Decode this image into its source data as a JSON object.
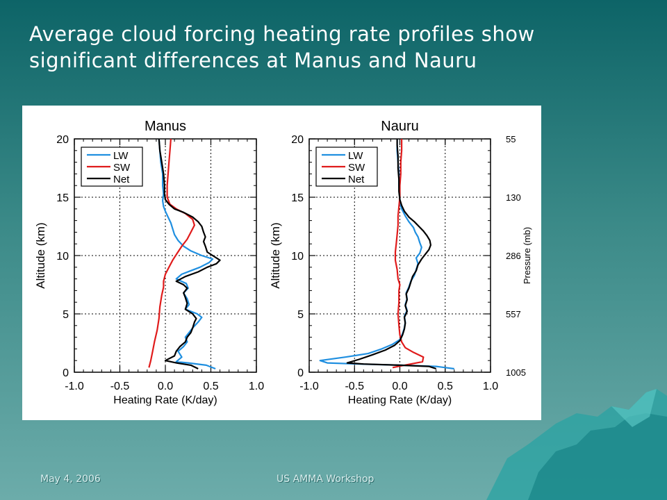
{
  "slide": {
    "title_lines": [
      "Average cloud forcing heating rate profiles show",
      "significant differences at Manus and Nauru"
    ],
    "footer_date": "May 4, 2006",
    "footer_event": "US AMMA Workshop"
  },
  "colors": {
    "lw": "#1f8fe0",
    "sw": "#e01b1b",
    "net": "#000000"
  },
  "chart_data": [
    {
      "type": "line",
      "title": "Manus",
      "xlabel": "Heating Rate (K/day)",
      "ylabel": "Altitude (km)",
      "xlim": [
        -1.0,
        1.0
      ],
      "ylim": [
        0,
        20
      ],
      "xticks": [
        "-1.0",
        "-0.5",
        "0.0",
        "0.5",
        "1.0"
      ],
      "yticks": [
        "0",
        "5",
        "10",
        "15",
        "20"
      ],
      "grid": true,
      "legend": [
        "LW",
        "SW",
        "Net"
      ],
      "series": [
        {
          "name": "LW",
          "color": "#1f8fe0",
          "points": [
            [
              0.55,
              0.3
            ],
            [
              0.45,
              0.6
            ],
            [
              0.25,
              0.8
            ],
            [
              0.12,
              0.9
            ],
            [
              0.18,
              1.3
            ],
            [
              0.14,
              1.8
            ],
            [
              0.2,
              2.2
            ],
            [
              0.24,
              2.6
            ],
            [
              0.22,
              3.0
            ],
            [
              0.26,
              3.4
            ],
            [
              0.3,
              3.8
            ],
            [
              0.36,
              4.3
            ],
            [
              0.4,
              4.7
            ],
            [
              0.35,
              5.0
            ],
            [
              0.22,
              5.4
            ],
            [
              0.26,
              5.8
            ],
            [
              0.24,
              6.3
            ],
            [
              0.2,
              6.8
            ],
            [
              0.25,
              7.2
            ],
            [
              0.23,
              7.6
            ],
            [
              0.12,
              8.0
            ],
            [
              0.18,
              8.4
            ],
            [
              0.28,
              8.7
            ],
            [
              0.38,
              9.0
            ],
            [
              0.48,
              9.4
            ],
            [
              0.52,
              9.7
            ],
            [
              0.4,
              10.0
            ],
            [
              0.28,
              10.4
            ],
            [
              0.2,
              10.8
            ],
            [
              0.14,
              11.3
            ],
            [
              0.1,
              11.8
            ],
            [
              0.08,
              12.3
            ],
            [
              0.06,
              12.8
            ],
            [
              0.03,
              13.3
            ],
            [
              0.0,
              13.8
            ],
            [
              -0.02,
              14.2
            ],
            [
              -0.03,
              14.7
            ],
            [
              -0.02,
              15.3
            ],
            [
              -0.03,
              16.0
            ],
            [
              -0.03,
              17.0
            ],
            [
              -0.05,
              18.0
            ],
            [
              -0.06,
              19.0
            ],
            [
              -0.07,
              20
            ]
          ]
        },
        {
          "name": "SW",
          "color": "#e01b1b",
          "points": [
            [
              -0.18,
              0.4
            ],
            [
              -0.16,
              1.0
            ],
            [
              -0.14,
              1.8
            ],
            [
              -0.12,
              2.6
            ],
            [
              -0.09,
              3.6
            ],
            [
              -0.07,
              4.6
            ],
            [
              -0.06,
              5.6
            ],
            [
              -0.04,
              6.6
            ],
            [
              -0.02,
              7.3
            ],
            [
              -0.02,
              7.8
            ],
            [
              0.0,
              8.4
            ],
            [
              0.04,
              9.0
            ],
            [
              0.08,
              9.6
            ],
            [
              0.13,
              10.2
            ],
            [
              0.18,
              10.8
            ],
            [
              0.24,
              11.4
            ],
            [
              0.28,
              12.0
            ],
            [
              0.32,
              12.6
            ],
            [
              0.3,
              13.1
            ],
            [
              0.22,
              13.6
            ],
            [
              0.12,
              14.0
            ],
            [
              0.05,
              14.4
            ],
            [
              0.02,
              15.0
            ],
            [
              0.02,
              16.0
            ],
            [
              0.03,
              17.0
            ],
            [
              0.04,
              18.0
            ],
            [
              0.05,
              19.0
            ],
            [
              0.06,
              20
            ]
          ]
        },
        {
          "name": "Net",
          "color": "#000000",
          "points": [
            [
              0.36,
              0.3
            ],
            [
              0.28,
              0.6
            ],
            [
              0.12,
              0.8
            ],
            [
              0.0,
              1.0
            ],
            [
              0.1,
              1.4
            ],
            [
              0.12,
              1.8
            ],
            [
              0.16,
              2.2
            ],
            [
              0.22,
              2.6
            ],
            [
              0.24,
              3.0
            ],
            [
              0.28,
              3.4
            ],
            [
              0.3,
              3.8
            ],
            [
              0.32,
              4.3
            ],
            [
              0.34,
              4.6
            ],
            [
              0.3,
              5.0
            ],
            [
              0.22,
              5.4
            ],
            [
              0.24,
              5.9
            ],
            [
              0.22,
              6.4
            ],
            [
              0.2,
              6.8
            ],
            [
              0.24,
              7.2
            ],
            [
              0.2,
              7.5
            ],
            [
              0.12,
              7.8
            ],
            [
              0.22,
              8.2
            ],
            [
              0.36,
              8.6
            ],
            [
              0.46,
              9.0
            ],
            [
              0.56,
              9.3
            ],
            [
              0.6,
              9.6
            ],
            [
              0.52,
              10.0
            ],
            [
              0.46,
              10.3
            ],
            [
              0.44,
              10.8
            ],
            [
              0.42,
              11.2
            ],
            [
              0.44,
              11.6
            ],
            [
              0.42,
              12.0
            ],
            [
              0.4,
              12.5
            ],
            [
              0.36,
              12.9
            ],
            [
              0.3,
              13.3
            ],
            [
              0.2,
              13.7
            ],
            [
              0.1,
              14.0
            ],
            [
              0.04,
              14.4
            ],
            [
              0.0,
              14.8
            ],
            [
              -0.01,
              15.3
            ],
            [
              -0.01,
              16.0
            ],
            [
              -0.02,
              17.0
            ],
            [
              -0.04,
              18.0
            ],
            [
              -0.06,
              19.0
            ],
            [
              -0.07,
              20
            ]
          ]
        }
      ]
    },
    {
      "type": "line",
      "title": "Nauru",
      "xlabel": "Heating Rate (K/day)",
      "ylabel": "Altitude (km)",
      "y2label": "Pressure (mb)",
      "y2ticks": [
        {
          "label": "55",
          "altitude": 20
        },
        {
          "label": "130",
          "altitude": 15
        },
        {
          "label": "286",
          "altitude": 10
        },
        {
          "label": "557",
          "altitude": 5
        },
        {
          "label": "1005",
          "altitude": 0
        }
      ],
      "xlim": [
        -1.0,
        1.0
      ],
      "ylim": [
        0,
        20
      ],
      "xticks": [
        "-1.0",
        "-0.5",
        "0.0",
        "0.5",
        "1.0"
      ],
      "yticks": [
        "0",
        "5",
        "10",
        "15",
        "20"
      ],
      "grid": true,
      "legend": [
        "LW",
        "SW",
        "Net"
      ],
      "series": [
        {
          "name": "LW",
          "color": "#1f8fe0",
          "points": [
            [
              0.6,
              0.3
            ],
            [
              0.4,
              0.5
            ],
            [
              0.0,
              0.6
            ],
            [
              -0.45,
              0.7
            ],
            [
              -0.8,
              0.8
            ],
            [
              -0.88,
              1.0
            ],
            [
              -0.6,
              1.3
            ],
            [
              -0.35,
              1.6
            ],
            [
              -0.2,
              2.0
            ],
            [
              -0.08,
              2.4
            ],
            [
              0.0,
              2.8
            ],
            [
              0.03,
              3.3
            ],
            [
              0.05,
              3.8
            ],
            [
              0.06,
              4.3
            ],
            [
              0.05,
              4.8
            ],
            [
              0.08,
              5.3
            ],
            [
              0.06,
              5.8
            ],
            [
              0.08,
              6.3
            ],
            [
              0.07,
              6.8
            ],
            [
              0.1,
              7.3
            ],
            [
              0.12,
              7.8
            ],
            [
              0.16,
              8.3
            ],
            [
              0.18,
              8.8
            ],
            [
              0.2,
              9.3
            ],
            [
              0.18,
              9.8
            ],
            [
              0.22,
              10.2
            ],
            [
              0.24,
              10.7
            ],
            [
              0.22,
              11.1
            ],
            [
              0.2,
              11.6
            ],
            [
              0.17,
              12.0
            ],
            [
              0.15,
              12.4
            ],
            [
              0.1,
              12.9
            ],
            [
              0.06,
              13.4
            ],
            [
              0.02,
              14.0
            ],
            [
              0.0,
              14.5
            ],
            [
              0.0,
              15.0
            ],
            [
              -0.01,
              16.0
            ],
            [
              -0.01,
              17.0
            ],
            [
              -0.02,
              18.0
            ],
            [
              -0.03,
              19.0
            ],
            [
              -0.03,
              20
            ]
          ]
        },
        {
          "name": "SW",
          "color": "#e01b1b",
          "points": [
            [
              -0.08,
              0.4
            ],
            [
              0.05,
              0.6
            ],
            [
              0.25,
              0.9
            ],
            [
              0.26,
              1.3
            ],
            [
              0.15,
              1.7
            ],
            [
              0.06,
              2.1
            ],
            [
              0.02,
              2.6
            ],
            [
              0.0,
              3.2
            ],
            [
              -0.01,
              4.0
            ],
            [
              -0.02,
              5.0
            ],
            [
              -0.01,
              6.0
            ],
            [
              -0.01,
              7.0
            ],
            [
              0.0,
              7.5
            ],
            [
              -0.02,
              8.0
            ],
            [
              -0.03,
              8.8
            ],
            [
              -0.05,
              9.6
            ],
            [
              -0.05,
              10.3
            ],
            [
              -0.04,
              11.0
            ],
            [
              -0.03,
              11.8
            ],
            [
              -0.02,
              12.6
            ],
            [
              -0.02,
              13.4
            ],
            [
              -0.01,
              14.2
            ],
            [
              0.0,
              15.0
            ],
            [
              0.0,
              16.0
            ],
            [
              0.01,
              17.0
            ],
            [
              0.01,
              18.0
            ],
            [
              0.02,
              19.0
            ],
            [
              0.02,
              20
            ]
          ]
        },
        {
          "name": "Net",
          "color": "#000000",
          "points": [
            [
              0.4,
              0.3
            ],
            [
              0.32,
              0.5
            ],
            [
              0.0,
              0.6
            ],
            [
              -0.4,
              0.7
            ],
            [
              -0.58,
              0.8
            ],
            [
              -0.45,
              1.1
            ],
            [
              -0.3,
              1.5
            ],
            [
              -0.16,
              1.9
            ],
            [
              -0.06,
              2.3
            ],
            [
              0.0,
              2.7
            ],
            [
              0.03,
              3.2
            ],
            [
              0.05,
              3.7
            ],
            [
              0.06,
              4.2
            ],
            [
              0.05,
              4.7
            ],
            [
              0.08,
              5.2
            ],
            [
              0.06,
              5.7
            ],
            [
              0.08,
              6.2
            ],
            [
              0.07,
              6.7
            ],
            [
              0.1,
              7.2
            ],
            [
              0.12,
              7.7
            ],
            [
              0.14,
              8.2
            ],
            [
              0.18,
              8.7
            ],
            [
              0.2,
              9.2
            ],
            [
              0.24,
              9.7
            ],
            [
              0.28,
              10.1
            ],
            [
              0.32,
              10.5
            ],
            [
              0.34,
              10.9
            ],
            [
              0.33,
              11.3
            ],
            [
              0.3,
              11.7
            ],
            [
              0.26,
              12.1
            ],
            [
              0.21,
              12.5
            ],
            [
              0.16,
              12.9
            ],
            [
              0.1,
              13.3
            ],
            [
              0.05,
              13.8
            ],
            [
              0.02,
              14.3
            ],
            [
              0.0,
              14.8
            ],
            [
              -0.01,
              15.5
            ],
            [
              -0.01,
              16.5
            ],
            [
              -0.02,
              17.5
            ],
            [
              -0.02,
              18.5
            ],
            [
              -0.03,
              19.5
            ],
            [
              -0.03,
              20
            ]
          ]
        }
      ]
    }
  ]
}
